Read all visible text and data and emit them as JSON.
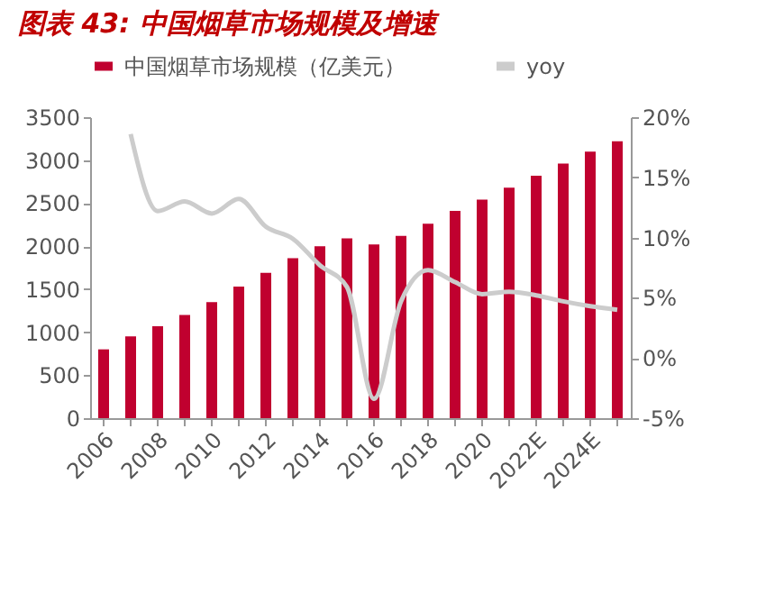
{
  "chart_data": {
    "type": "bar",
    "title": "图表 43:  中国烟草市场规模及增速",
    "categories": [
      "2006",
      null,
      "2008",
      null,
      "2010",
      null,
      "2012",
      null,
      "2014",
      null,
      "2016",
      null,
      "2018",
      null,
      "2020",
      null,
      "2022E",
      null,
      "2024E",
      null
    ],
    "series": [
      {
        "name": "中国烟草市场规模（亿美元）",
        "color": "#c0002f",
        "values": [
          800,
          950,
          1070,
          1200,
          1350,
          1530,
          1690,
          1860,
          2000,
          2090,
          2020,
          2120,
          2260,
          2410,
          2540,
          2680,
          2820,
          2960,
          3100,
          3220
        ]
      },
      {
        "name": "yoy",
        "color": "#cccccc",
        "type": "line",
        "axis": "y2",
        "values": [
          null,
          18.6,
          12.2,
          13.0,
          12.0,
          13.2,
          10.9,
          9.9,
          7.7,
          5.9,
          -3.4,
          4.7,
          7.3,
          6.3,
          5.3,
          5.5,
          5.2,
          4.7,
          4.3,
          4.0
        ]
      }
    ],
    "ylim": [
      0,
      3500
    ],
    "yticks": [
      0,
      500,
      1000,
      1500,
      2000,
      2500,
      3000,
      3500
    ],
    "y2lim": [
      -5,
      20
    ],
    "y2ticks": [
      {
        "value": -5,
        "label": "-5%"
      },
      {
        "value": 0,
        "label": "0%"
      },
      {
        "value": 5,
        "label": "5%"
      },
      {
        "value": 10,
        "label": "10%"
      },
      {
        "value": 15,
        "label": "15%"
      },
      {
        "value": 20,
        "label": "20%"
      }
    ],
    "grid": false,
    "legend": "top",
    "marker": "none",
    "line_style": "solid"
  }
}
